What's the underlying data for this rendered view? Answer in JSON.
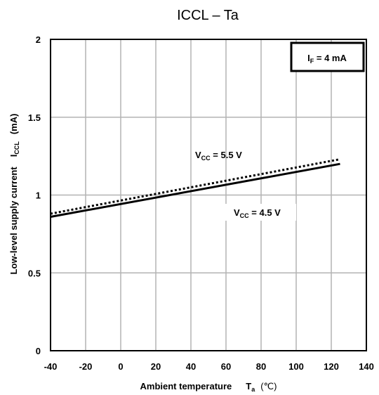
{
  "chart_data": {
    "type": "line",
    "title": "ICCL – Ta",
    "xlabel": {
      "main": "Ambient temperature",
      "symbol": "T",
      "symbol_sub": "a",
      "unit": "(℃)"
    },
    "ylabel": {
      "main": "Low-level supply current",
      "symbol": "I",
      "symbol_sub": "CCL",
      "unit": "(mA)"
    },
    "xlim": [
      -40,
      140
    ],
    "ylim": [
      0,
      2
    ],
    "x_ticks": [
      -40,
      -20,
      0,
      20,
      40,
      60,
      80,
      100,
      120,
      140
    ],
    "y_ticks": [
      0,
      0.5,
      1,
      1.5,
      2
    ],
    "x_tick_labels": [
      "-40",
      "-20",
      "0",
      "20",
      "40",
      "60",
      "80",
      "100",
      "120",
      "140"
    ],
    "y_tick_labels": [
      "0",
      "0.5",
      "1",
      "1.5",
      "2"
    ],
    "grid": true,
    "condition_box": {
      "symbol": "I",
      "sub": "F",
      "value": " = 4 mA",
      "placement": "top-right"
    },
    "series": [
      {
        "name": "",
        "label": {
          "symbol": "V",
          "sub": "CC",
          "value": " = 5.5 V"
        },
        "style": "dotted",
        "color": "#000000",
        "x": [
          -40,
          125
        ],
        "y": [
          0.88,
          1.23
        ]
      },
      {
        "name": "",
        "label": {
          "symbol": "V",
          "sub": "CC",
          "value": " = 4.5 V"
        },
        "style": "solid",
        "color": "#000000",
        "x": [
          -40,
          125
        ],
        "y": [
          0.86,
          1.2
        ]
      }
    ]
  }
}
